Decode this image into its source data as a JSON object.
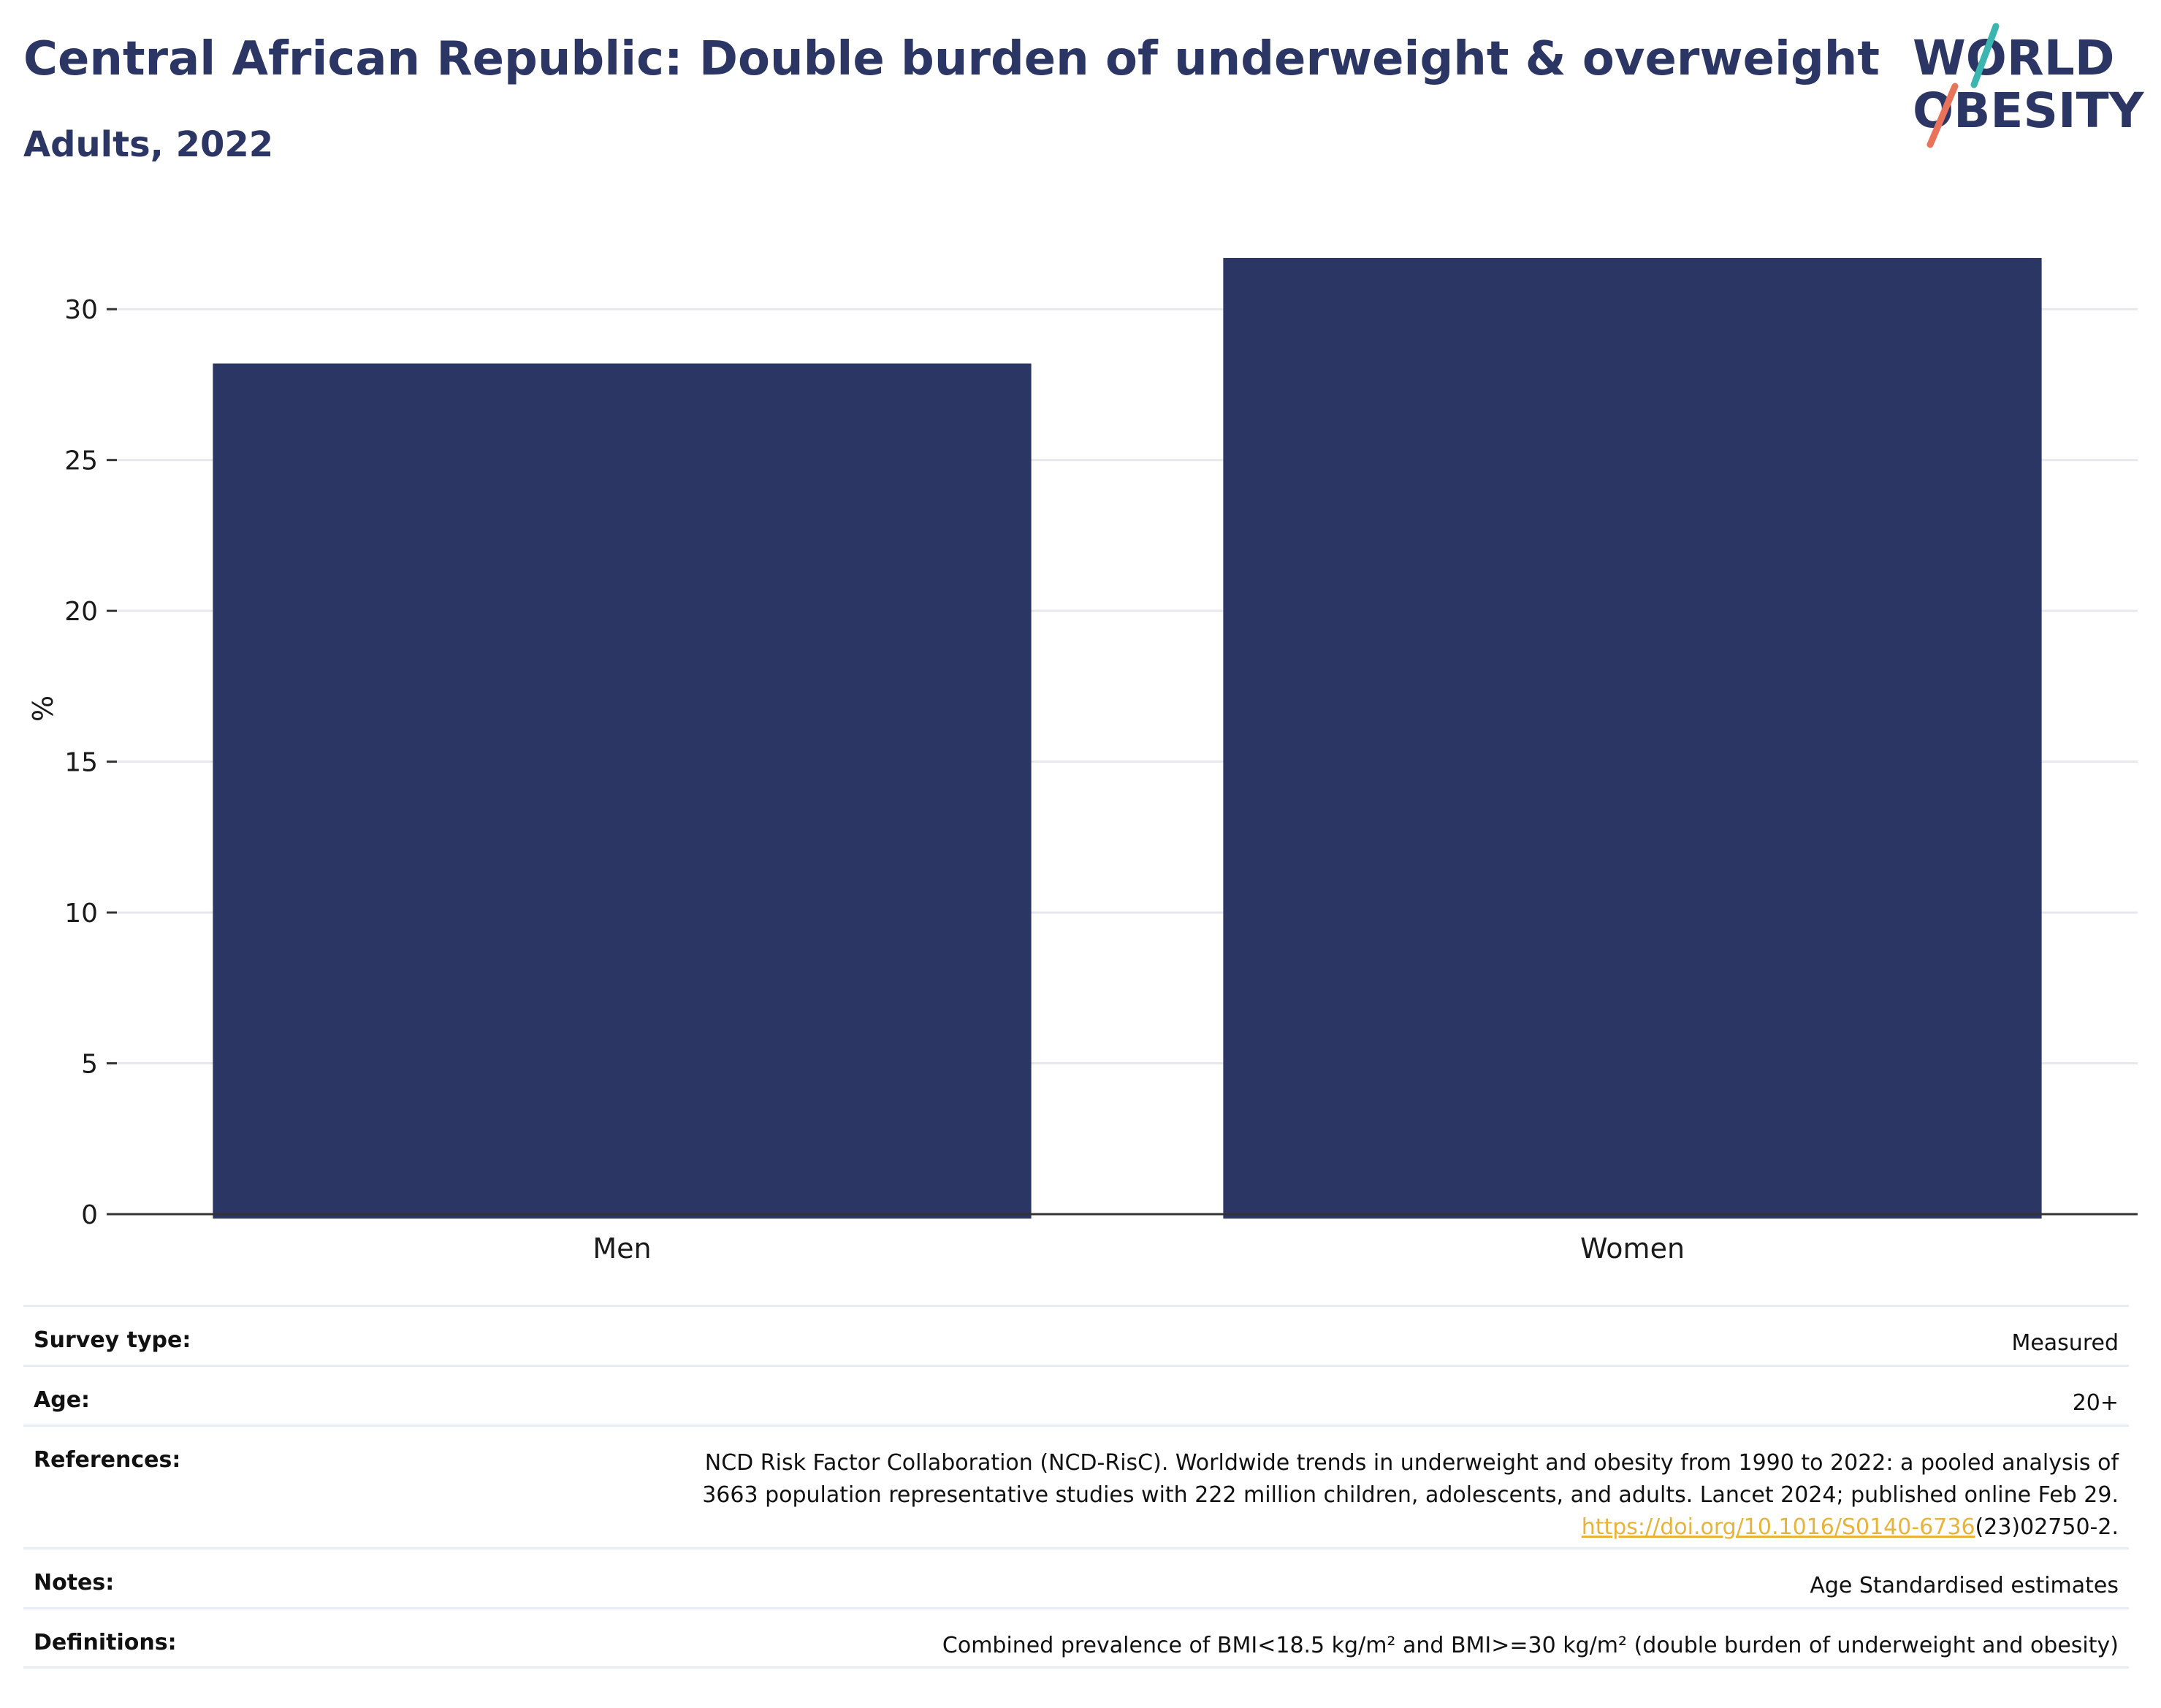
{
  "header": {
    "title": "Central African Republic: Double burden of underweight & overweight",
    "subtitle": "Adults, 2022"
  },
  "logo": {
    "line1": "WORLD",
    "line2": "OBESITY",
    "accent_teal": "#3bb5b0",
    "accent_coral": "#e8735a",
    "text_color": "#2b3664"
  },
  "chart_data": {
    "type": "bar",
    "categories": [
      "Men",
      "Women"
    ],
    "values": [
      28.2,
      31.7
    ],
    "ylabel": "%",
    "xlabel": "",
    "ylim": [
      0,
      32.5
    ],
    "yticks": [
      0,
      5,
      10,
      15,
      20,
      25,
      30
    ],
    "bar_color": "#2b3664",
    "grid": true
  },
  "meta": {
    "survey_type_label": "Survey type:",
    "survey_type_value": "Measured",
    "age_label": "Age:",
    "age_value": "20+",
    "references_label": "References:",
    "references_line1": "NCD Risk Factor Collaboration (NCD-RisC). Worldwide trends in underweight and obesity from 1990 to 2022: a pooled analysis of",
    "references_line2": "3663 population representative studies with 222 million children, adolescents, and adults. Lancet 2024; published online Feb 29.",
    "references_link": "https://doi.org/10.1016/S0140-6736",
    "references_tail": "(23)02750-2.",
    "notes_label": "Notes:",
    "notes_value": "Age Standardised estimates",
    "definitions_label": "Definitions:",
    "definitions_value": "Combined prevalence of BMI<18.5 kg/m² and BMI>=30 kg/m² (double burden of underweight and obesity)"
  }
}
